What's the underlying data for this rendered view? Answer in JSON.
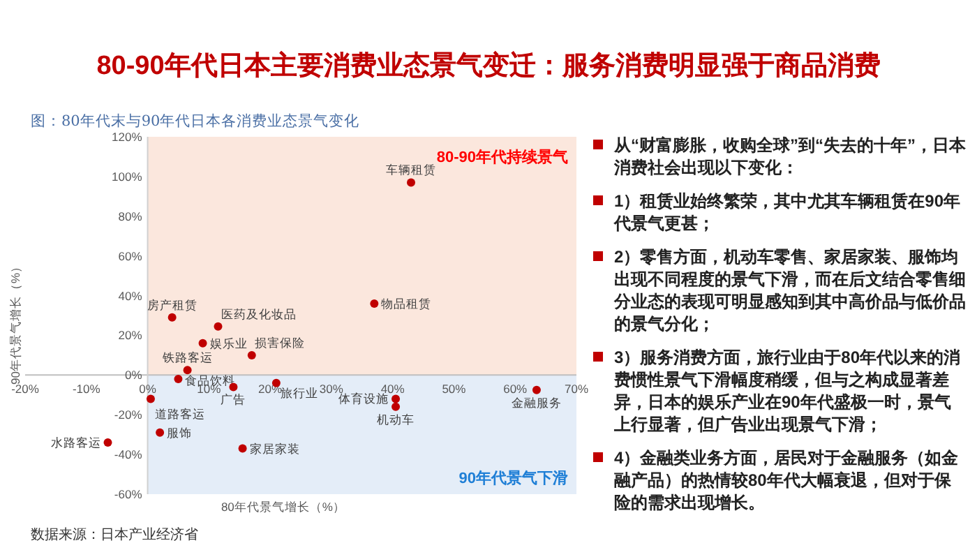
{
  "chart_data": [
    {
      "type": "scatter",
      "title": "80-90年代日本主要消费业态景气变迁：服务消费明显强于商品消费",
      "subtitle": "图：80年代末与90年代日本各消费业态景气变化",
      "xlabel": "80年代景气增长（%）",
      "ylabel": "90年代景气增长（%）",
      "xlim": [
        -20,
        70
      ],
      "xticks": [
        {
          "value": -20,
          "label": "-20%"
        },
        {
          "value": -10,
          "label": "-10%"
        },
        {
          "value": 0,
          "label": "0%"
        },
        {
          "value": 10,
          "label": "10%"
        },
        {
          "value": 20,
          "label": "20%"
        },
        {
          "value": 30,
          "label": "30%"
        },
        {
          "value": 40,
          "label": "40%"
        },
        {
          "value": 50,
          "label": "50%"
        },
        {
          "value": 60,
          "label": "60%"
        },
        {
          "value": 70,
          "label": "70%"
        }
      ],
      "ylim": [
        -60,
        120
      ],
      "yticks": [
        {
          "value": -60,
          "label": "-60%"
        },
        {
          "value": -40,
          "label": "-40%"
        },
        {
          "value": -20,
          "label": "-20%"
        },
        {
          "value": 0,
          "label": "0%"
        },
        {
          "value": 20,
          "label": "20%"
        },
        {
          "value": 40,
          "label": "40%"
        },
        {
          "value": 60,
          "label": "60%"
        },
        {
          "value": 80,
          "label": "80%"
        },
        {
          "value": 100,
          "label": "100%"
        },
        {
          "value": 120,
          "label": "120%"
        }
      ],
      "marker": "circle",
      "bands": [
        {
          "axis": "y",
          "from": 0,
          "to": 120,
          "label": "80-90年代持续景气",
          "color": "#fbe7dd"
        },
        {
          "axis": "y",
          "from": -60,
          "to": 0,
          "label": "90年代景气下滑",
          "color": "#e4edf8"
        }
      ],
      "series": [
        {
          "name": "房产租赁",
          "color": "#c00000",
          "x": [
            4
          ],
          "values": [
            29
          ]
        },
        {
          "name": "医药及化妆品",
          "color": "#c00000",
          "x": [
            11.5
          ],
          "values": [
            24.5
          ]
        },
        {
          "name": "娱乐业",
          "color": "#c00000",
          "x": [
            9
          ],
          "values": [
            16
          ]
        },
        {
          "name": "损害保险",
          "color": "#c00000",
          "x": [
            17
          ],
          "values": [
            10
          ]
        },
        {
          "name": "铁路客运",
          "color": "#c00000",
          "x": [
            6.5
          ],
          "values": [
            2.5
          ]
        },
        {
          "name": "食品饮料",
          "color": "#c00000",
          "x": [
            5
          ],
          "values": [
            -2
          ]
        },
        {
          "name": "道路客运",
          "color": "#c00000",
          "x": [
            0.5
          ],
          "values": [
            -12
          ]
        },
        {
          "name": "服饰",
          "color": "#c00000",
          "x": [
            2
          ],
          "values": [
            -29
          ]
        },
        {
          "name": "水路客运",
          "color": "#c00000",
          "x": [
            -6.5
          ],
          "values": [
            -34
          ]
        },
        {
          "name": "家居家装",
          "color": "#c00000",
          "x": [
            15.5
          ],
          "values": [
            -37
          ]
        },
        {
          "name": "广告",
          "color": "#c00000",
          "x": [
            14
          ],
          "values": [
            -6
          ]
        },
        {
          "name": "旅行业",
          "color": "#c00000",
          "x": [
            21
          ],
          "values": [
            -4
          ]
        },
        {
          "name": "车辆租赁",
          "color": "#c00000",
          "x": [
            43
          ],
          "values": [
            97
          ]
        },
        {
          "name": "物品租赁",
          "color": "#c00000",
          "x": [
            37
          ],
          "values": [
            36
          ]
        },
        {
          "name": "体育设施",
          "color": "#c00000",
          "x": [
            40.5
          ],
          "values": [
            -12
          ]
        },
        {
          "name": "机动车",
          "color": "#c00000",
          "x": [
            40.5
          ],
          "values": [
            -16
          ]
        },
        {
          "name": "金融服务",
          "color": "#c00000",
          "x": [
            63.5
          ],
          "values": [
            -7.5
          ]
        }
      ],
      "annotations": [
        "数据来源：日本产业经济省"
      ]
    },
    {
      "type": "other",
      "annotations": [
        "从“财富膨胀，收购全球”到“失去的十年”，日本消费社会出现以下变化：",
        "1）租赁业始终繁荣，其中尤其车辆租赁在90年代景气更甚；",
        "2）零售方面，机动车零售、家居家装、服饰均出现不同程度的景气下滑，而在后文结合零售细分业态的表现可明显感知到其中高价品与低价品的景气分化；",
        "3）服务消费方面，旅行业由于80年代以来的消费惯性景气下滑幅度稍缓，但与之构成显著差异，日本的娱乐产业在90年代盛极一时，景气上行显著，但广告业出现景气下滑；",
        "4）金融类业务方面，居民对于金融服务（如金融产品）的热情较80年代大幅衰退，但对于保险的需求出现增长。"
      ]
    }
  ]
}
